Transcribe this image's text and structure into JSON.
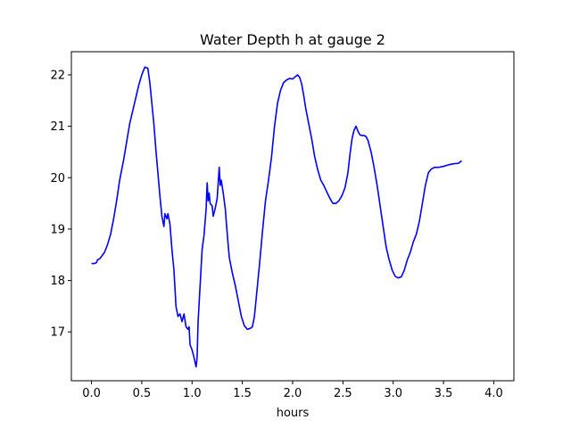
{
  "chart_data": {
    "type": "line",
    "title": "Water Depth h at gauge 2",
    "xlabel": "hours",
    "ylabel": "",
    "xlim": [
      -0.2,
      4.2
    ],
    "ylim": [
      16.05,
      22.45
    ],
    "xticks": [
      0.0,
      0.5,
      1.0,
      1.5,
      2.0,
      2.5,
      3.0,
      3.5,
      4.0
    ],
    "xtick_labels": [
      "0.0",
      "0.5",
      "1.0",
      "1.5",
      "2.0",
      "2.5",
      "3.0",
      "3.5",
      "4.0"
    ],
    "yticks": [
      17,
      18,
      19,
      20,
      21,
      22
    ],
    "ytick_labels": [
      "17",
      "18",
      "19",
      "20",
      "21",
      "22"
    ],
    "grid": false,
    "series": [
      {
        "color": "#0000ff",
        "points": [
          [
            0.0,
            18.33
          ],
          [
            0.03,
            18.33
          ],
          [
            0.05,
            18.35
          ],
          [
            0.06,
            18.4
          ],
          [
            0.08,
            18.42
          ],
          [
            0.1,
            18.47
          ],
          [
            0.13,
            18.55
          ],
          [
            0.16,
            18.7
          ],
          [
            0.19,
            18.9
          ],
          [
            0.22,
            19.2
          ],
          [
            0.25,
            19.55
          ],
          [
            0.28,
            19.95
          ],
          [
            0.32,
            20.35
          ],
          [
            0.35,
            20.7
          ],
          [
            0.38,
            21.05
          ],
          [
            0.41,
            21.3
          ],
          [
            0.44,
            21.55
          ],
          [
            0.47,
            21.8
          ],
          [
            0.5,
            22.0
          ],
          [
            0.53,
            22.15
          ],
          [
            0.56,
            22.13
          ],
          [
            0.58,
            21.85
          ],
          [
            0.6,
            21.45
          ],
          [
            0.62,
            21.05
          ],
          [
            0.64,
            20.55
          ],
          [
            0.66,
            20.1
          ],
          [
            0.68,
            19.65
          ],
          [
            0.7,
            19.25
          ],
          [
            0.72,
            19.05
          ],
          [
            0.73,
            19.3
          ],
          [
            0.75,
            19.2
          ],
          [
            0.76,
            19.3
          ],
          [
            0.78,
            19.1
          ],
          [
            0.8,
            18.6
          ],
          [
            0.82,
            18.2
          ],
          [
            0.84,
            17.5
          ],
          [
            0.86,
            17.3
          ],
          [
            0.88,
            17.35
          ],
          [
            0.9,
            17.2
          ],
          [
            0.92,
            17.35
          ],
          [
            0.94,
            17.1
          ],
          [
            0.96,
            17.05
          ],
          [
            0.97,
            17.1
          ],
          [
            0.98,
            16.75
          ],
          [
            1.0,
            16.65
          ],
          [
            1.02,
            16.5
          ],
          [
            1.04,
            16.32
          ],
          [
            1.05,
            16.5
          ],
          [
            1.06,
            17.2
          ],
          [
            1.08,
            17.9
          ],
          [
            1.1,
            18.6
          ],
          [
            1.12,
            18.9
          ],
          [
            1.14,
            19.4
          ],
          [
            1.15,
            19.9
          ],
          [
            1.16,
            19.55
          ],
          [
            1.17,
            19.7
          ],
          [
            1.18,
            19.5
          ],
          [
            1.2,
            19.45
          ],
          [
            1.21,
            19.25
          ],
          [
            1.23,
            19.4
          ],
          [
            1.25,
            19.6
          ],
          [
            1.27,
            20.2
          ],
          [
            1.28,
            19.85
          ],
          [
            1.29,
            19.95
          ],
          [
            1.31,
            19.7
          ],
          [
            1.33,
            19.4
          ],
          [
            1.35,
            18.9
          ],
          [
            1.37,
            18.45
          ],
          [
            1.4,
            18.15
          ],
          [
            1.43,
            17.9
          ],
          [
            1.46,
            17.6
          ],
          [
            1.49,
            17.3
          ],
          [
            1.52,
            17.12
          ],
          [
            1.55,
            17.05
          ],
          [
            1.58,
            17.07
          ],
          [
            1.6,
            17.1
          ],
          [
            1.62,
            17.3
          ],
          [
            1.64,
            17.7
          ],
          [
            1.67,
            18.3
          ],
          [
            1.7,
            18.95
          ],
          [
            1.73,
            19.55
          ],
          [
            1.76,
            19.95
          ],
          [
            1.79,
            20.4
          ],
          [
            1.82,
            21.0
          ],
          [
            1.85,
            21.45
          ],
          [
            1.88,
            21.7
          ],
          [
            1.91,
            21.85
          ],
          [
            1.94,
            21.9
          ],
          [
            1.97,
            21.93
          ],
          [
            2.0,
            21.92
          ],
          [
            2.03,
            21.97
          ],
          [
            2.05,
            22.0
          ],
          [
            2.07,
            21.95
          ],
          [
            2.09,
            21.82
          ],
          [
            2.11,
            21.6
          ],
          [
            2.13,
            21.35
          ],
          [
            2.16,
            21.05
          ],
          [
            2.19,
            20.75
          ],
          [
            2.22,
            20.4
          ],
          [
            2.25,
            20.15
          ],
          [
            2.28,
            19.95
          ],
          [
            2.31,
            19.85
          ],
          [
            2.34,
            19.72
          ],
          [
            2.37,
            19.6
          ],
          [
            2.4,
            19.5
          ],
          [
            2.43,
            19.5
          ],
          [
            2.46,
            19.55
          ],
          [
            2.49,
            19.65
          ],
          [
            2.52,
            19.8
          ],
          [
            2.55,
            20.1
          ],
          [
            2.57,
            20.45
          ],
          [
            2.59,
            20.75
          ],
          [
            2.61,
            20.92
          ],
          [
            2.63,
            21.0
          ],
          [
            2.65,
            20.9
          ],
          [
            2.67,
            20.83
          ],
          [
            2.69,
            20.82
          ],
          [
            2.71,
            20.82
          ],
          [
            2.73,
            20.8
          ],
          [
            2.75,
            20.72
          ],
          [
            2.78,
            20.5
          ],
          [
            2.81,
            20.2
          ],
          [
            2.84,
            19.85
          ],
          [
            2.87,
            19.45
          ],
          [
            2.9,
            19.05
          ],
          [
            2.93,
            18.65
          ],
          [
            2.96,
            18.4
          ],
          [
            2.99,
            18.2
          ],
          [
            3.02,
            18.08
          ],
          [
            3.05,
            18.05
          ],
          [
            3.08,
            18.07
          ],
          [
            3.11,
            18.2
          ],
          [
            3.14,
            18.4
          ],
          [
            3.17,
            18.55
          ],
          [
            3.2,
            18.75
          ],
          [
            3.23,
            18.9
          ],
          [
            3.26,
            19.15
          ],
          [
            3.29,
            19.5
          ],
          [
            3.32,
            19.85
          ],
          [
            3.35,
            20.1
          ],
          [
            3.38,
            20.17
          ],
          [
            3.41,
            20.2
          ],
          [
            3.45,
            20.2
          ],
          [
            3.5,
            20.22
          ],
          [
            3.55,
            20.25
          ],
          [
            3.6,
            20.27
          ],
          [
            3.65,
            20.28
          ],
          [
            3.68,
            20.33
          ]
        ]
      }
    ]
  }
}
